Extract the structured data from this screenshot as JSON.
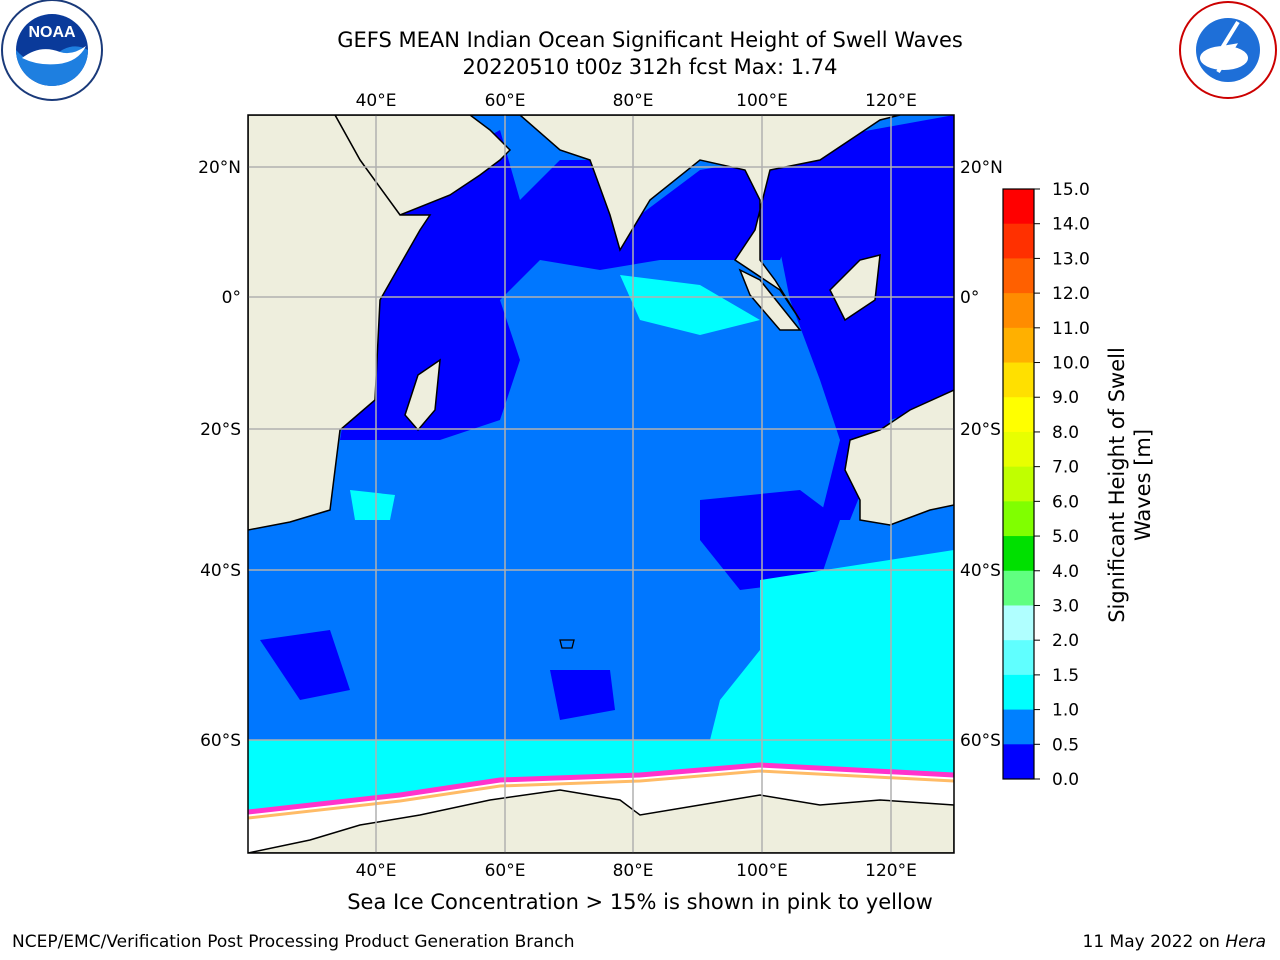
{
  "header": {
    "title_line1": "GEFS MEAN Indian Ocean Significant Height of Swell Waves",
    "title_line2": "20220510 t00z 312h fcst   Max: 1.74"
  },
  "logos": {
    "left": "NOAA",
    "right": "NATIONAL WEATHER SERVICE"
  },
  "map": {
    "lon_labels": [
      "40°E",
      "60°E",
      "80°E",
      "100°E",
      "120°E"
    ],
    "lat_labels_left": [
      "20°N",
      "0°",
      "20°S",
      "40°S",
      "60°S"
    ],
    "lat_labels_right": [
      "20°N",
      "0°",
      "20°S",
      "40°S",
      "60°S"
    ],
    "colors": {
      "land": "#eeeedd",
      "ocean_low": "#0000ff",
      "ocean_mid": "#0077ff",
      "ocean_high": "#00ffff",
      "ice": "#ffffff",
      "ice_edge": "#ff33cc"
    }
  },
  "colorbar": {
    "label_line1": "Significant Height of Swell",
    "label_line2": "Waves [m]",
    "ticks": [
      "15.0",
      "14.0",
      "13.0",
      "12.0",
      "11.0",
      "10.0",
      "9.0",
      "8.0",
      "7.0",
      "6.0",
      "5.0",
      "4.0",
      "3.0",
      "2.0",
      "1.5",
      "1.0",
      "0.5",
      "0.0"
    ],
    "colors": [
      "#ff0000",
      "#ff3000",
      "#ff6000",
      "#ff8c00",
      "#ffb000",
      "#ffe000",
      "#ffff00",
      "#e8ff00",
      "#c0ff00",
      "#80ff00",
      "#00e000",
      "#60ff80",
      "#b0ffff",
      "#60ffff",
      "#00ffff",
      "#0080ff",
      "#0000ff"
    ]
  },
  "caption": "Sea Ice Concentration > 15% is shown in pink to yellow",
  "footer": {
    "left": "NCEP/EMC/Verification Post Processing Product Generation Branch",
    "right_date": "11 May 2022 on ",
    "right_host": "Hera"
  }
}
